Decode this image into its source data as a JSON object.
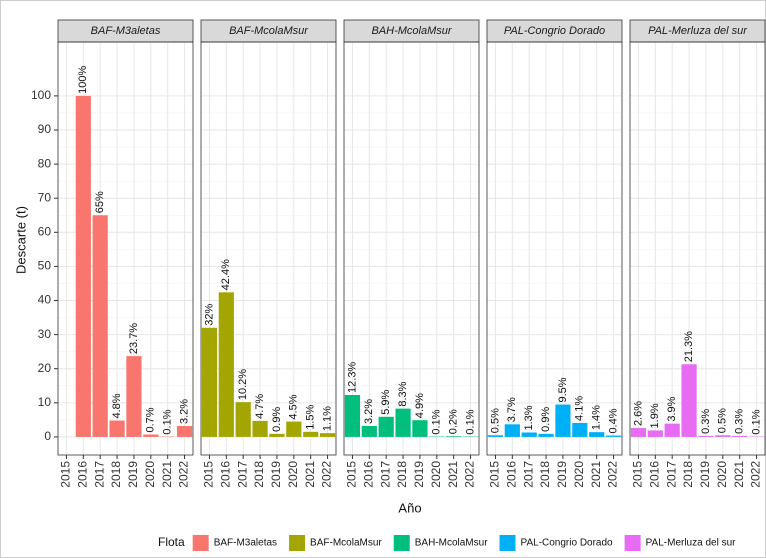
{
  "y_label": "Descarte (t)",
  "x_label": "Año",
  "legend_title": "Flota",
  "chart_data": [
    {
      "type": "bar",
      "title": "BAF-M3aletas",
      "color": "#f8766d",
      "categories": [
        "2015",
        "2016",
        "2017",
        "2018",
        "2019",
        "2020",
        "2021",
        "2022"
      ],
      "values": [
        null,
        100,
        65,
        4.8,
        23.7,
        0.7,
        0.1,
        3.2
      ],
      "value_labels": [
        null,
        "100%",
        "65%",
        "4.8%",
        "23.7%",
        "0.7%",
        "0.1%",
        "3.2%"
      ],
      "ylim": [
        -5.3,
        115.8
      ],
      "yticks": [
        0,
        10,
        20,
        30,
        40,
        50,
        60,
        70,
        80,
        90,
        100
      ],
      "grid": true
    },
    {
      "type": "bar",
      "title": "BAF-McolaMsur",
      "color": "#a3a500",
      "categories": [
        "2015",
        "2016",
        "2017",
        "2018",
        "2019",
        "2020",
        "2021",
        "2022"
      ],
      "values": [
        32,
        42.4,
        10.2,
        4.7,
        0.9,
        4.5,
        1.5,
        1.1
      ],
      "value_labels": [
        "32%",
        "42.4%",
        "10.2%",
        "4.7%",
        "0.9%",
        "4.5%",
        "1.5%",
        "1.1%"
      ],
      "ylim": [
        -5.3,
        115.8
      ],
      "yticks": [
        0,
        10,
        20,
        30,
        40,
        50,
        60,
        70,
        80,
        90,
        100
      ],
      "grid": true
    },
    {
      "type": "bar",
      "title": "BAH-McolaMsur",
      "color": "#00bf7d",
      "categories": [
        "2015",
        "2016",
        "2017",
        "2018",
        "2019",
        "2020",
        "2021",
        "2022"
      ],
      "values": [
        12.3,
        3.2,
        5.9,
        8.3,
        4.9,
        0.1,
        0.2,
        0.1
      ],
      "value_labels": [
        "12.3%",
        "3.2%",
        "5.9%",
        "8.3%",
        "4.9%",
        "0.1%",
        "0.2%",
        "0.1%"
      ],
      "ylim": [
        -5.3,
        115.8
      ],
      "yticks": [
        0,
        10,
        20,
        30,
        40,
        50,
        60,
        70,
        80,
        90,
        100
      ],
      "grid": true
    },
    {
      "type": "bar",
      "title": "PAL-Congrio Dorado",
      "color": "#00b0f6",
      "categories": [
        "2015",
        "2016",
        "2017",
        "2018",
        "2019",
        "2020",
        "2021",
        "2022"
      ],
      "values": [
        0.5,
        3.7,
        1.3,
        0.9,
        9.5,
        4.1,
        1.4,
        0.4
      ],
      "value_labels": [
        "0.5%",
        "3.7%",
        "1.3%",
        "0.9%",
        "9.5%",
        "4.1%",
        "1.4%",
        "0.4%"
      ],
      "ylim": [
        -5.3,
        115.8
      ],
      "yticks": [
        0,
        10,
        20,
        30,
        40,
        50,
        60,
        70,
        80,
        90,
        100
      ],
      "grid": true
    },
    {
      "type": "bar",
      "title": "PAL-Merluza del sur",
      "color": "#e76bf3",
      "categories": [
        "2015",
        "2016",
        "2017",
        "2018",
        "2019",
        "2020",
        "2021",
        "2022"
      ],
      "values": [
        2.6,
        1.9,
        3.9,
        21.3,
        0.3,
        0.5,
        0.3,
        0.1
      ],
      "value_labels": [
        "2.6%",
        "1.9%",
        "3.9%",
        "21.3%",
        "0.3%",
        "0.5%",
        "0.3%",
        "0.1%"
      ],
      "ylim": [
        -5.3,
        115.8
      ],
      "yticks": [
        0,
        10,
        20,
        30,
        40,
        50,
        60,
        70,
        80,
        90,
        100
      ],
      "grid": true
    }
  ]
}
